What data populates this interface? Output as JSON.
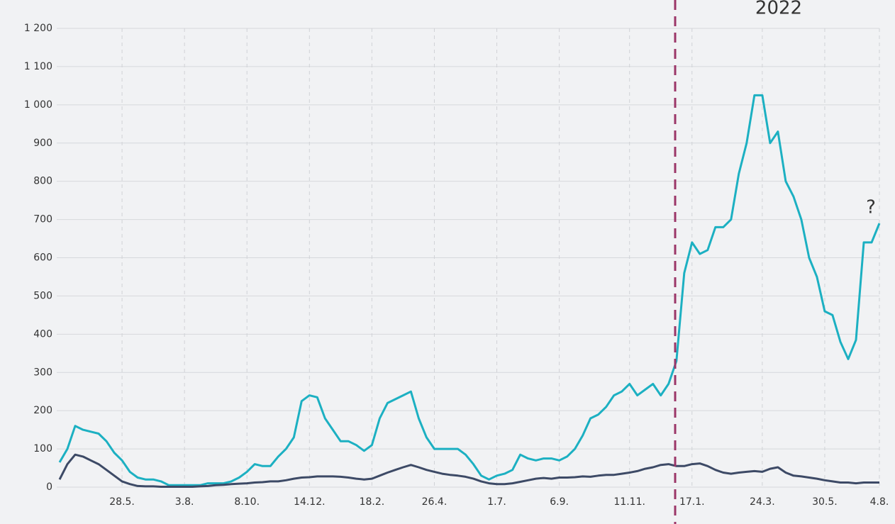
{
  "chart_data": {
    "type": "line",
    "annotations": [
      "2022",
      "?"
    ],
    "categories": [
      null,
      null,
      null,
      null,
      null,
      null,
      null,
      null,
      "28.5.",
      null,
      null,
      null,
      null,
      null,
      null,
      null,
      "3.8.",
      null,
      null,
      null,
      null,
      null,
      null,
      null,
      "8.10.",
      null,
      null,
      null,
      null,
      null,
      null,
      null,
      "14.12.",
      null,
      null,
      null,
      null,
      null,
      null,
      null,
      "18.2.",
      null,
      null,
      null,
      null,
      null,
      null,
      null,
      "26.4.",
      null,
      null,
      null,
      null,
      null,
      null,
      null,
      "1.7.",
      null,
      null,
      null,
      null,
      null,
      null,
      null,
      "6.9.",
      null,
      null,
      null,
      null,
      null,
      null,
      null,
      null,
      "11.11.",
      null,
      null,
      null,
      null,
      null,
      null,
      null,
      "17.1.",
      null,
      null,
      null,
      null,
      null,
      null,
      null,
      null,
      "24.3.",
      null,
      null,
      null,
      null,
      null,
      null,
      null,
      "30.5.",
      null,
      null,
      null,
      null,
      null,
      null,
      "4.8."
    ],
    "series": [
      {
        "color": "#1cb0c2",
        "values": [
          65,
          100,
          160,
          150,
          145,
          140,
          120,
          90,
          70,
          40,
          25,
          20,
          20,
          15,
          5,
          5,
          5,
          5,
          5,
          10,
          10,
          10,
          15,
          25,
          40,
          60,
          55,
          55,
          80,
          100,
          130,
          225,
          240,
          235,
          180,
          150,
          120,
          120,
          110,
          95,
          110,
          180,
          220,
          230,
          240,
          250,
          180,
          130,
          100,
          100,
          100,
          100,
          85,
          60,
          30,
          20,
          30,
          35,
          45,
          85,
          75,
          70,
          75,
          75,
          70,
          80,
          100,
          135,
          180,
          190,
          210,
          240,
          250,
          270,
          240,
          255,
          270,
          240,
          270,
          330,
          560,
          640,
          610,
          620,
          680,
          680,
          700,
          820,
          900,
          1025,
          1025,
          900,
          930,
          800,
          760,
          700,
          600,
          550,
          460,
          450,
          380,
          335,
          385,
          640,
          640,
          690
        ]
      },
      {
        "color": "#3d4a66",
        "values": [
          20,
          60,
          85,
          80,
          70,
          60,
          45,
          30,
          15,
          8,
          3,
          2,
          2,
          1,
          1,
          1,
          1,
          1,
          2,
          3,
          5,
          6,
          8,
          9,
          10,
          12,
          13,
          15,
          15,
          18,
          22,
          25,
          26,
          28,
          28,
          28,
          27,
          25,
          22,
          20,
          22,
          30,
          38,
          45,
          52,
          58,
          52,
          45,
          40,
          35,
          32,
          30,
          27,
          22,
          15,
          10,
          8,
          8,
          10,
          14,
          18,
          22,
          24,
          22,
          25,
          25,
          26,
          28,
          27,
          30,
          32,
          32,
          35,
          38,
          42,
          48,
          52,
          58,
          60,
          55,
          55,
          60,
          62,
          55,
          45,
          38,
          35,
          38,
          40,
          42,
          40,
          48,
          52,
          38,
          30,
          28,
          25,
          22,
          18,
          15,
          12,
          12,
          10,
          12,
          12,
          12
        ]
      }
    ],
    "ylim": [
      0,
      1200
    ],
    "yticks": [
      0,
      100,
      200,
      300,
      400,
      500,
      600,
      700,
      800,
      900,
      {
        "value": 1000,
        "label": "1 000"
      },
      {
        "value": 1100,
        "label": "1 100"
      },
      {
        "value": 1200,
        "label": "1 200"
      }
    ],
    "grid": true
  }
}
